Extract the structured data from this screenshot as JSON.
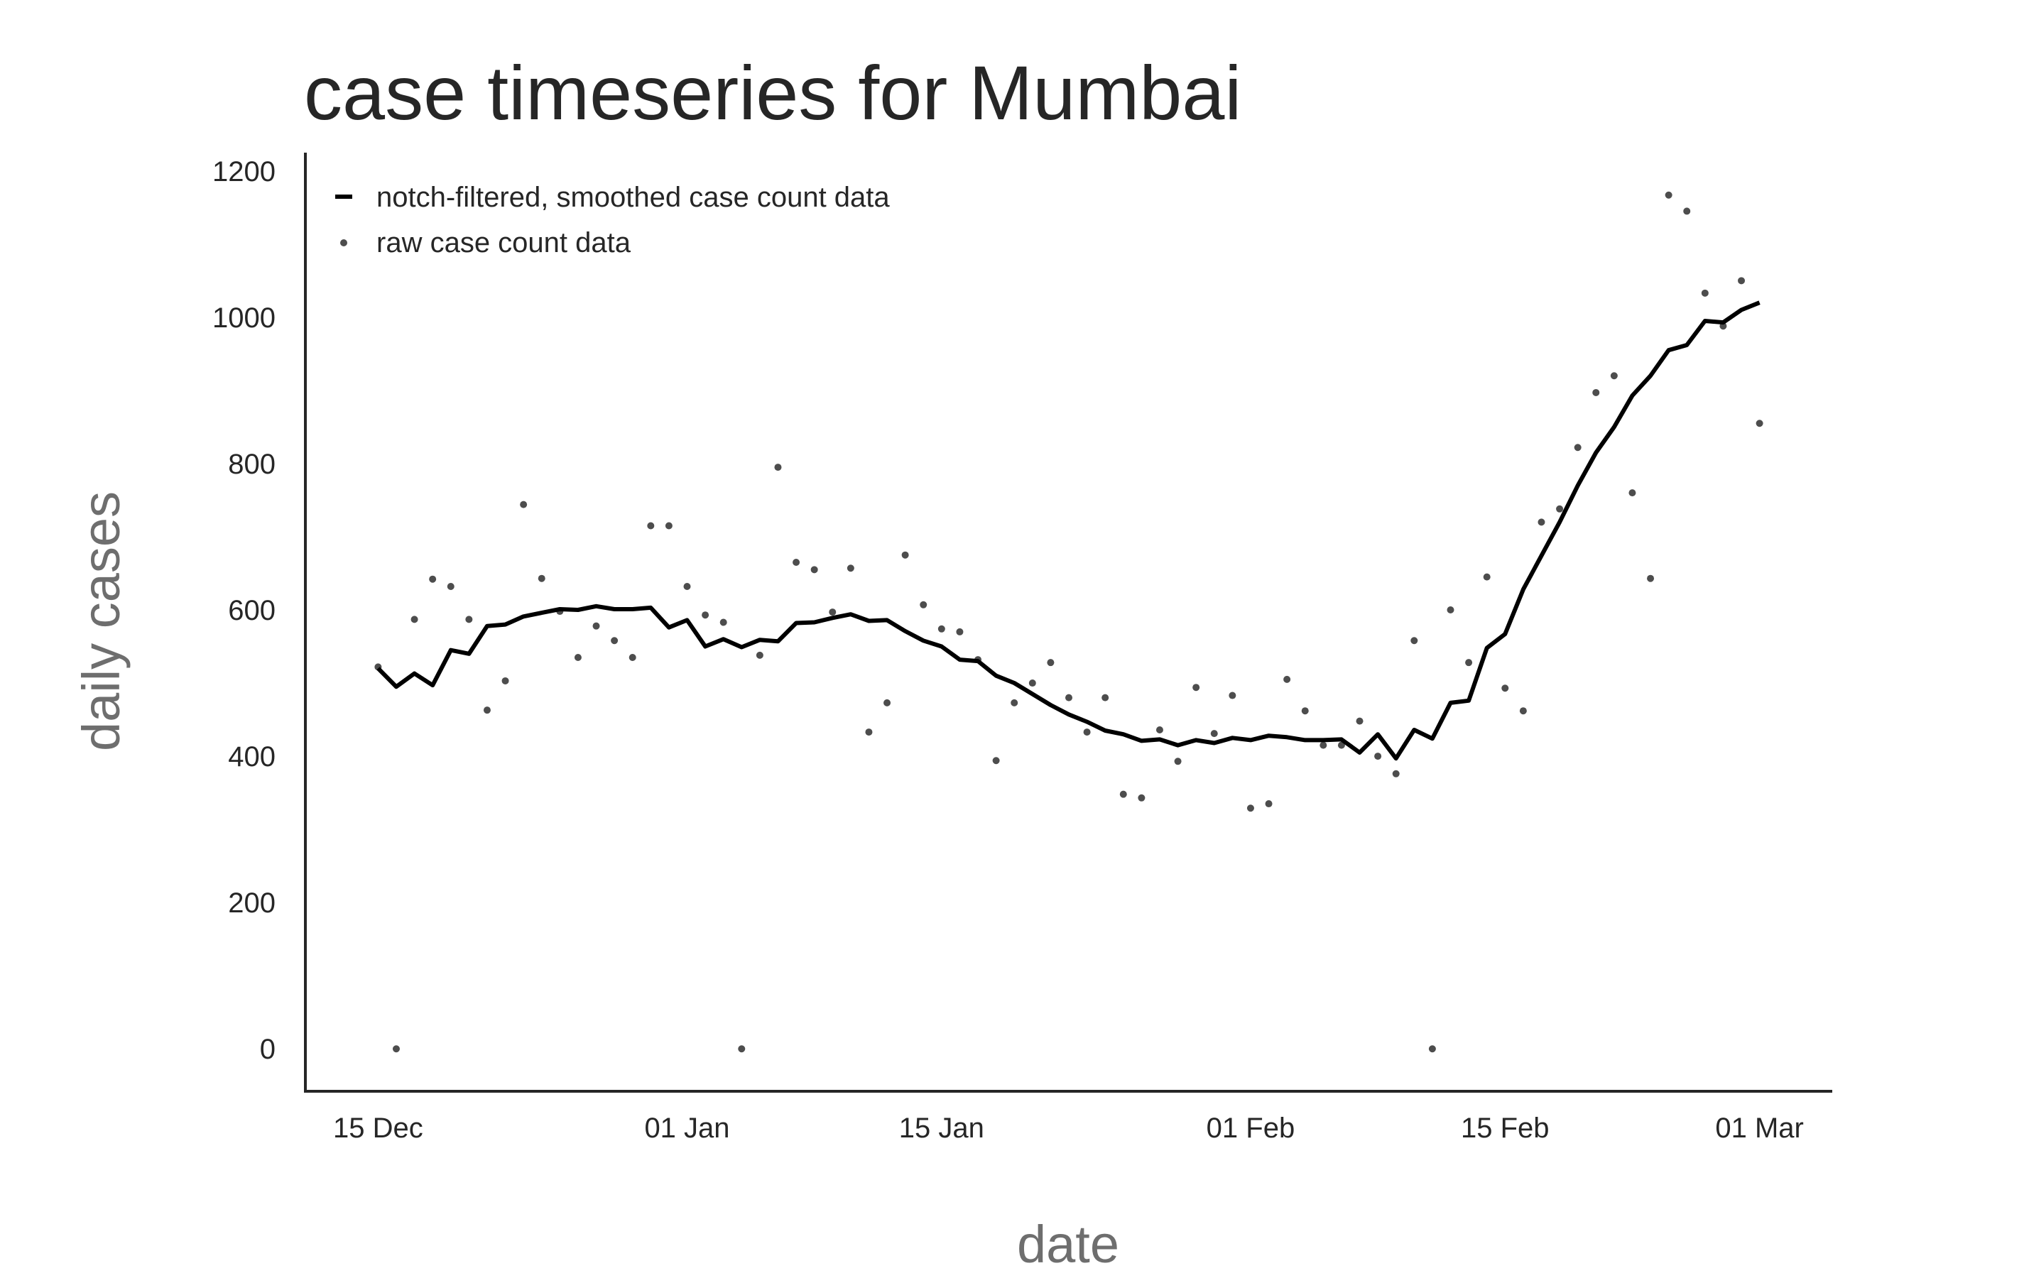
{
  "chart_data": {
    "type": "line",
    "title": "case timeseries for Mumbai",
    "xlabel": "date",
    "ylabel": "daily cases",
    "start_date": "2020-12-15",
    "x_ticks": [
      {
        "date": "2020-12-15",
        "label": "15 Dec"
      },
      {
        "date": "2021-01-01",
        "label": "01 Jan"
      },
      {
        "date": "2021-01-15",
        "label": "15 Jan"
      },
      {
        "date": "2021-02-01",
        "label": "01 Feb"
      },
      {
        "date": "2021-02-15",
        "label": "15 Feb"
      },
      {
        "date": "2021-03-01",
        "label": "01 Mar"
      }
    ],
    "y_ticks": [
      0,
      200,
      400,
      600,
      800,
      1000,
      1200
    ],
    "xlim": [
      "2020-12-11",
      "2021-03-05"
    ],
    "ylim": [
      -58,
      1225
    ],
    "grid": false,
    "legend_position": "top-left",
    "colors": {
      "smoothed": "#000000",
      "raw": "#4d4d4d",
      "axis": "#262626"
    },
    "series": [
      {
        "name": "notch-filtered, smoothed case count data",
        "style": "line",
        "values": [
          520,
          495,
          513,
          497,
          545,
          540,
          578,
          580,
          591,
          596,
          601,
          600,
          605,
          601,
          601,
          603,
          576,
          586,
          550,
          560,
          549,
          559,
          557,
          582,
          583,
          589,
          594,
          585,
          586,
          571,
          558,
          550,
          532,
          530,
          510,
          500,
          485,
          470,
          457,
          447,
          435,
          430,
          421,
          423,
          415,
          422,
          418,
          425,
          422,
          428,
          426,
          422,
          422,
          423,
          405,
          430,
          397,
          436,
          424,
          473,
          476,
          548,
          567,
          628,
          674,
          720,
          770,
          815,
          850,
          893,
          920,
          955,
          962,
          995,
          993,
          1010,
          1020
        ]
      },
      {
        "name": "raw case count data",
        "style": "scatter",
        "values": [
          522,
          0,
          587,
          642,
          632,
          587,
          463,
          503,
          744,
          643,
          598,
          535,
          578,
          558,
          535,
          715,
          715,
          632,
          593,
          583,
          0,
          538,
          795,
          665,
          655,
          597,
          657,
          433,
          473,
          675,
          607,
          574,
          570,
          532,
          394,
          473,
          500,
          528,
          480,
          433,
          480,
          348,
          343,
          436,
          393,
          494,
          431,
          483,
          329,
          335,
          505,
          462,
          415,
          415,
          448,
          400,
          376,
          558,
          0,
          600,
          528,
          645,
          493,
          462,
          720,
          738,
          822,
          897,
          920,
          760,
          643,
          1167,
          1145,
          1033,
          988,
          1050,
          855
        ]
      }
    ]
  }
}
